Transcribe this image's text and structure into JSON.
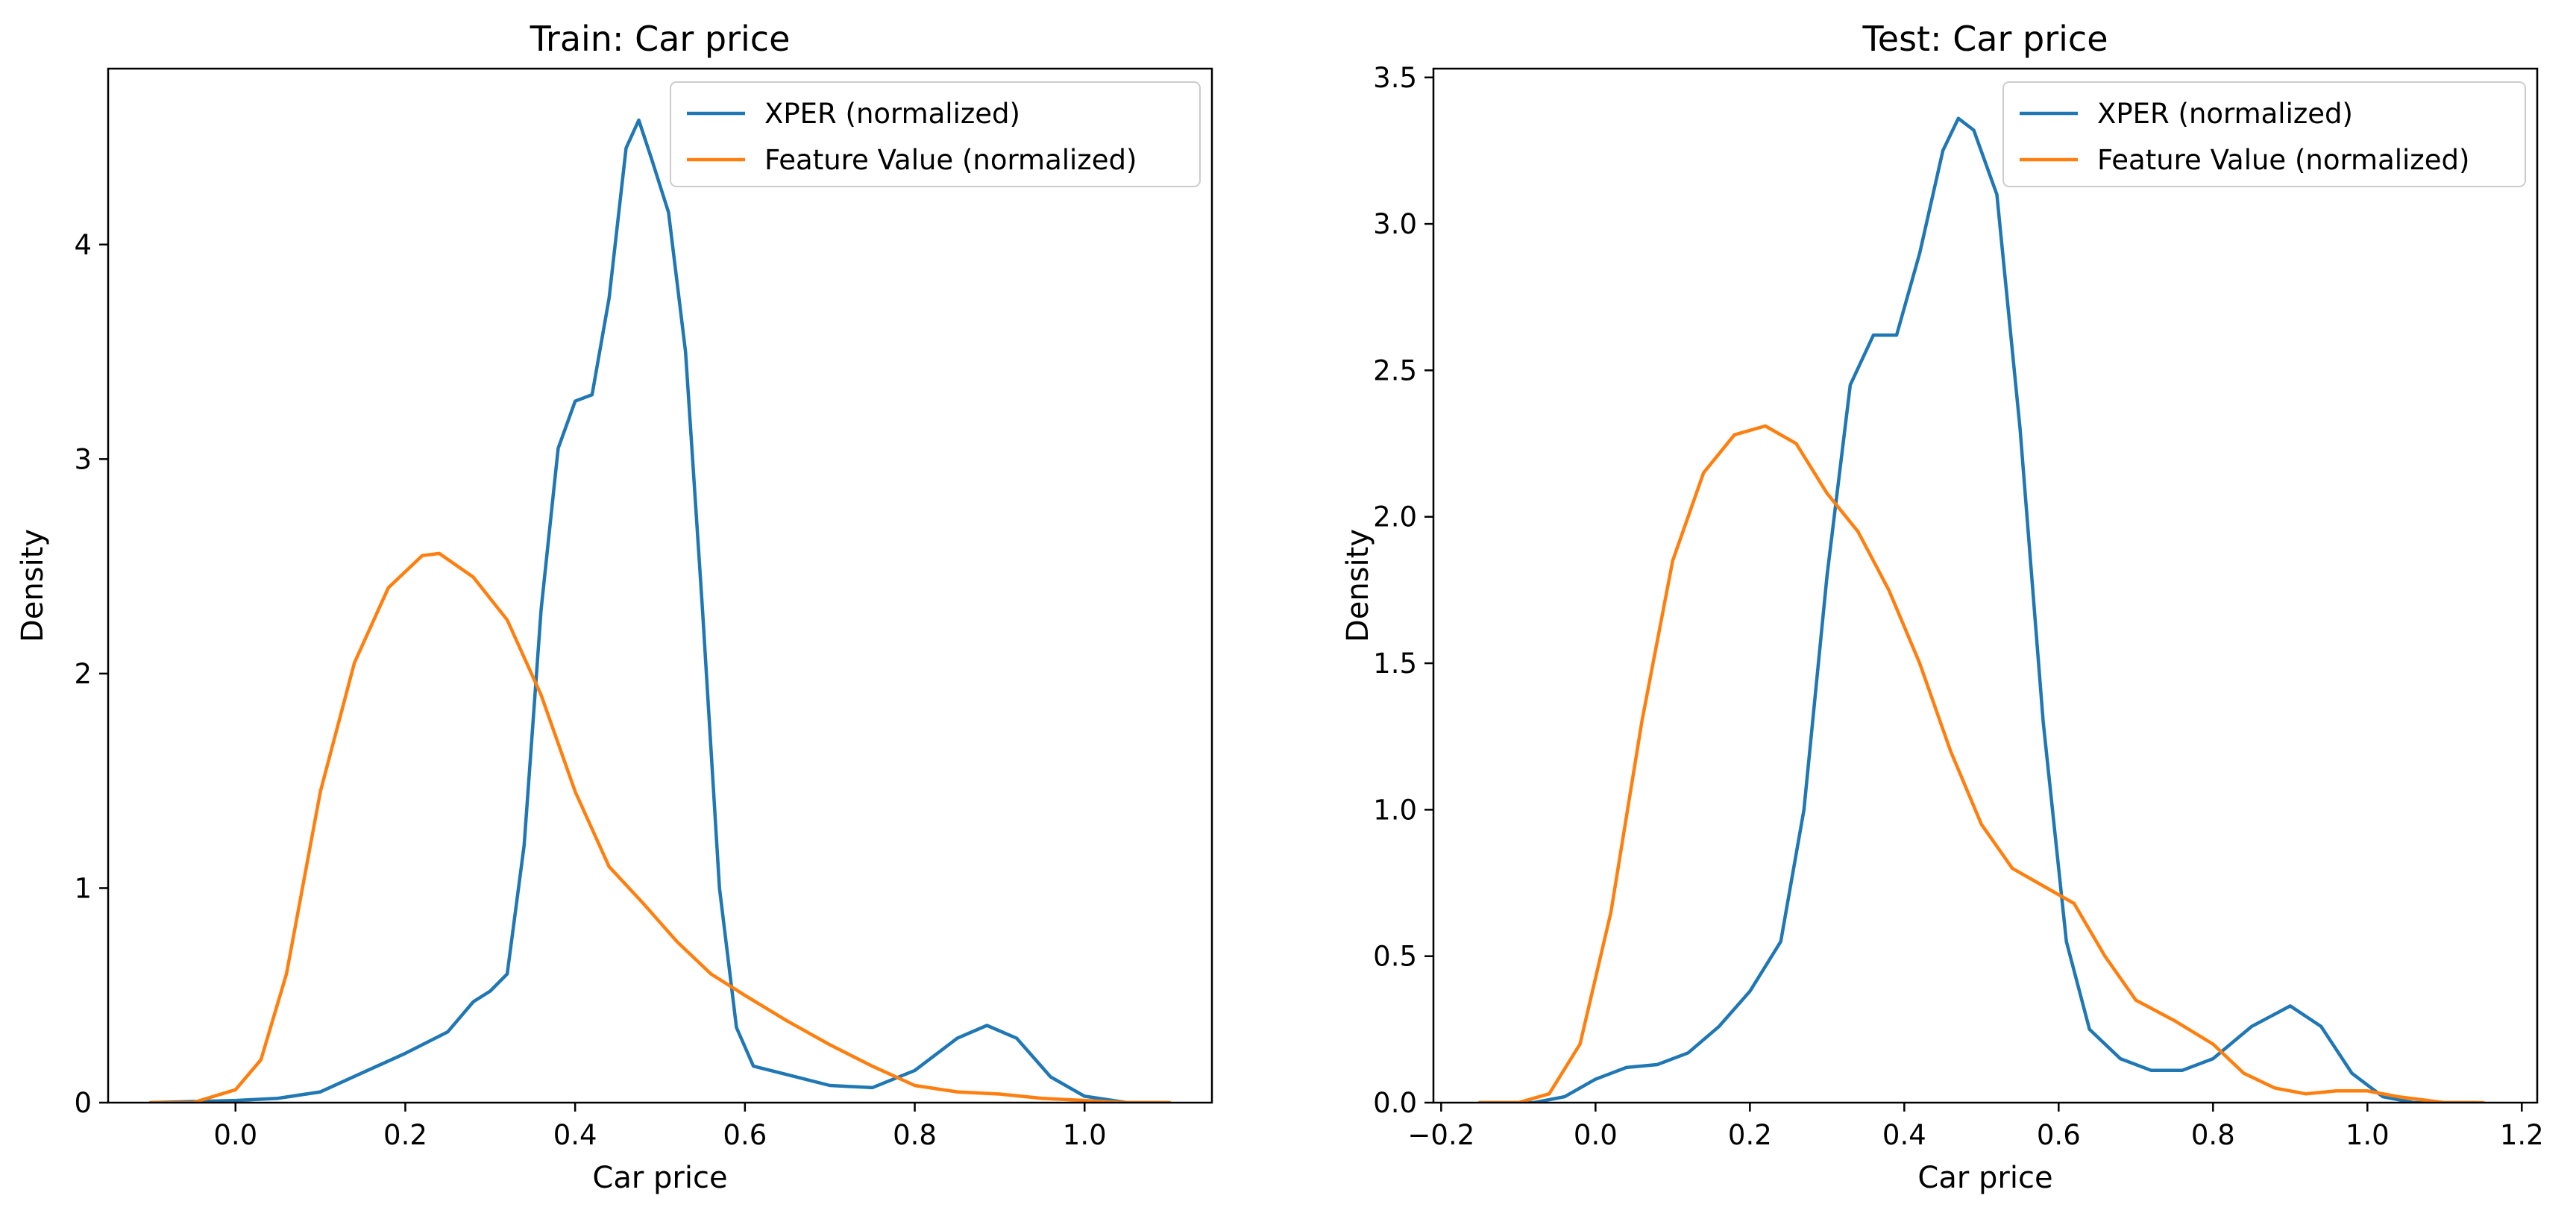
{
  "chart_data": [
    {
      "type": "line",
      "title": "Train: Car price",
      "xlabel": "Car price",
      "ylabel": "Density",
      "xlim": [
        -0.15,
        1.15
      ],
      "ylim": [
        0,
        4.82
      ],
      "xticks": [
        0.0,
        0.2,
        0.4,
        0.6,
        0.8,
        1.0
      ],
      "xtick_labels": [
        "0.0",
        "0.2",
        "0.4",
        "0.6",
        "0.8",
        "1.0"
      ],
      "yticks": [
        0,
        1,
        2,
        3,
        4
      ],
      "ytick_labels": [
        "0",
        "1",
        "2",
        "3",
        "4"
      ],
      "grid": false,
      "legend_position": "upper right",
      "series": [
        {
          "name": "XPER (normalized)",
          "color": "#1f77b4",
          "points": [
            [
              -0.1,
              0.0
            ],
            [
              0.0,
              0.01
            ],
            [
              0.05,
              0.02
            ],
            [
              0.1,
              0.05
            ],
            [
              0.15,
              0.14
            ],
            [
              0.2,
              0.23
            ],
            [
              0.25,
              0.33
            ],
            [
              0.28,
              0.47
            ],
            [
              0.3,
              0.52
            ],
            [
              0.32,
              0.6
            ],
            [
              0.34,
              1.2
            ],
            [
              0.36,
              2.3
            ],
            [
              0.38,
              3.05
            ],
            [
              0.4,
              3.27
            ],
            [
              0.42,
              3.3
            ],
            [
              0.44,
              3.75
            ],
            [
              0.46,
              4.45
            ],
            [
              0.475,
              4.58
            ],
            [
              0.49,
              4.4
            ],
            [
              0.51,
              4.15
            ],
            [
              0.53,
              3.5
            ],
            [
              0.55,
              2.3
            ],
            [
              0.57,
              1.0
            ],
            [
              0.59,
              0.35
            ],
            [
              0.61,
              0.17
            ],
            [
              0.65,
              0.13
            ],
            [
              0.7,
              0.08
            ],
            [
              0.75,
              0.07
            ],
            [
              0.8,
              0.15
            ],
            [
              0.85,
              0.3
            ],
            [
              0.885,
              0.36
            ],
            [
              0.92,
              0.3
            ],
            [
              0.96,
              0.12
            ],
            [
              1.0,
              0.03
            ],
            [
              1.05,
              0.0
            ],
            [
              1.1,
              0.0
            ]
          ]
        },
        {
          "name": "Feature Value (normalized)",
          "color": "#ff7f0e",
          "points": [
            [
              -0.1,
              0.0
            ],
            [
              -0.05,
              0.0
            ],
            [
              0.0,
              0.06
            ],
            [
              0.03,
              0.2
            ],
            [
              0.06,
              0.6
            ],
            [
              0.1,
              1.45
            ],
            [
              0.14,
              2.05
            ],
            [
              0.18,
              2.4
            ],
            [
              0.22,
              2.55
            ],
            [
              0.24,
              2.56
            ],
            [
              0.28,
              2.45
            ],
            [
              0.32,
              2.25
            ],
            [
              0.36,
              1.9
            ],
            [
              0.4,
              1.45
            ],
            [
              0.44,
              1.1
            ],
            [
              0.48,
              0.93
            ],
            [
              0.52,
              0.75
            ],
            [
              0.56,
              0.6
            ],
            [
              0.6,
              0.5
            ],
            [
              0.65,
              0.38
            ],
            [
              0.7,
              0.27
            ],
            [
              0.75,
              0.17
            ],
            [
              0.8,
              0.08
            ],
            [
              0.85,
              0.05
            ],
            [
              0.9,
              0.04
            ],
            [
              0.95,
              0.02
            ],
            [
              1.0,
              0.01
            ],
            [
              1.05,
              0.0
            ],
            [
              1.1,
              0.0
            ]
          ]
        }
      ]
    },
    {
      "type": "line",
      "title": "Test: Car price",
      "xlabel": "Car price",
      "ylabel": "Density",
      "xlim": [
        -0.21,
        1.22
      ],
      "ylim": [
        0,
        3.53
      ],
      "xticks": [
        -0.2,
        0.0,
        0.2,
        0.4,
        0.6,
        0.8,
        1.0,
        1.2
      ],
      "xtick_labels": [
        "−0.2",
        "0.0",
        "0.2",
        "0.4",
        "0.6",
        "0.8",
        "1.0",
        "1.2"
      ],
      "yticks": [
        0.0,
        0.5,
        1.0,
        1.5,
        2.0,
        2.5,
        3.0,
        3.5
      ],
      "ytick_labels": [
        "0.0",
        "0.5",
        "1.0",
        "1.5",
        "2.0",
        "2.5",
        "3.0",
        "3.5"
      ],
      "grid": false,
      "legend_position": "upper right",
      "series": [
        {
          "name": "XPER (normalized)",
          "color": "#1f77b4",
          "points": [
            [
              -0.15,
              0.0
            ],
            [
              -0.08,
              0.0
            ],
            [
              -0.04,
              0.02
            ],
            [
              0.0,
              0.08
            ],
            [
              0.04,
              0.12
            ],
            [
              0.08,
              0.13
            ],
            [
              0.12,
              0.17
            ],
            [
              0.16,
              0.26
            ],
            [
              0.2,
              0.38
            ],
            [
              0.24,
              0.55
            ],
            [
              0.27,
              1.0
            ],
            [
              0.3,
              1.8
            ],
            [
              0.33,
              2.45
            ],
            [
              0.36,
              2.62
            ],
            [
              0.39,
              2.62
            ],
            [
              0.42,
              2.9
            ],
            [
              0.45,
              3.25
            ],
            [
              0.47,
              3.36
            ],
            [
              0.49,
              3.32
            ],
            [
              0.52,
              3.1
            ],
            [
              0.55,
              2.3
            ],
            [
              0.58,
              1.3
            ],
            [
              0.61,
              0.55
            ],
            [
              0.64,
              0.25
            ],
            [
              0.68,
              0.15
            ],
            [
              0.72,
              0.11
            ],
            [
              0.76,
              0.11
            ],
            [
              0.8,
              0.15
            ],
            [
              0.85,
              0.26
            ],
            [
              0.9,
              0.33
            ],
            [
              0.94,
              0.26
            ],
            [
              0.98,
              0.1
            ],
            [
              1.02,
              0.02
            ],
            [
              1.06,
              0.0
            ],
            [
              1.14,
              0.0
            ]
          ]
        },
        {
          "name": "Feature Value (normalized)",
          "color": "#ff7f0e",
          "points": [
            [
              -0.15,
              0.0
            ],
            [
              -0.1,
              0.0
            ],
            [
              -0.06,
              0.03
            ],
            [
              -0.02,
              0.2
            ],
            [
              0.02,
              0.65
            ],
            [
              0.06,
              1.3
            ],
            [
              0.1,
              1.85
            ],
            [
              0.14,
              2.15
            ],
            [
              0.18,
              2.28
            ],
            [
              0.22,
              2.31
            ],
            [
              0.26,
              2.25
            ],
            [
              0.3,
              2.08
            ],
            [
              0.34,
              1.95
            ],
            [
              0.38,
              1.75
            ],
            [
              0.42,
              1.5
            ],
            [
              0.46,
              1.2
            ],
            [
              0.5,
              0.95
            ],
            [
              0.54,
              0.8
            ],
            [
              0.58,
              0.74
            ],
            [
              0.62,
              0.68
            ],
            [
              0.66,
              0.5
            ],
            [
              0.7,
              0.35
            ],
            [
              0.75,
              0.28
            ],
            [
              0.8,
              0.2
            ],
            [
              0.84,
              0.1
            ],
            [
              0.88,
              0.05
            ],
            [
              0.92,
              0.03
            ],
            [
              0.96,
              0.04
            ],
            [
              1.0,
              0.04
            ],
            [
              1.04,
              0.02
            ],
            [
              1.1,
              0.0
            ],
            [
              1.15,
              0.0
            ]
          ]
        }
      ]
    }
  ]
}
